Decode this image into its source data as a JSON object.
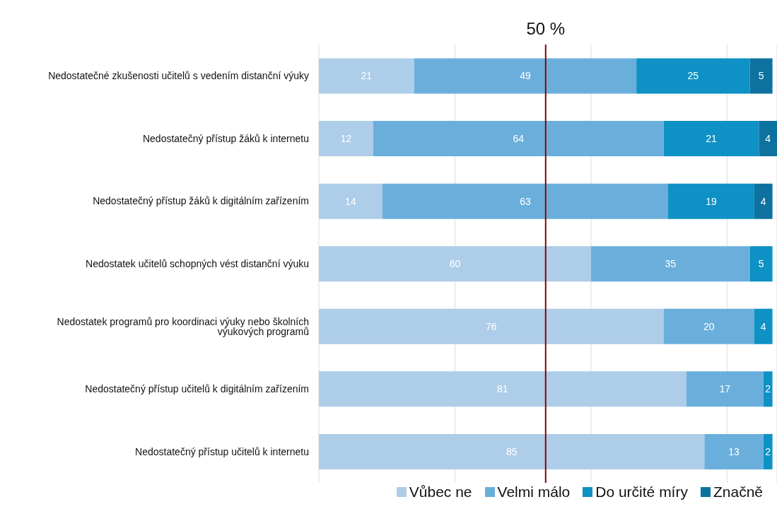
{
  "chart_data": {
    "type": "bar",
    "orientation": "horizontal",
    "stacked": true,
    "data_labels": true,
    "grid": "x",
    "legend": "bottom right",
    "tick_labels": "y",
    "categories": [
      "Nedostatečné zkušenosti učitelů s vedením distanční výuky",
      "Nedostatečný přístup žáků k internetu",
      "Nedostatečný přístup žáků k digitálním zařízením",
      "Nedostatek učitelů schopných vést distanční výuku",
      "Nedostatek programů pro koordinaci výuky nebo školních výukových programů",
      "Nedostatečný přístup učitelů k digitálním zařízením",
      "Nedostatečný přístup učitelů k internetu"
    ],
    "xlim": [
      0,
      101
    ],
    "series": [
      {
        "name": "Vůbec ne",
        "color": "#aecde8",
        "values": [
          21,
          12,
          14,
          60,
          76,
          81,
          85
        ]
      },
      {
        "name": "Velmi málo",
        "color": "#6aafdc",
        "values": [
          49,
          64,
          63,
          35,
          20,
          17,
          13
        ]
      },
      {
        "name": "Do určité míry",
        "color": "#0e91c4",
        "values": [
          25,
          21,
          19,
          5,
          4,
          2,
          2
        ]
      },
      {
        "name": "Značně",
        "color": "#0d72a0",
        "values": [
          5,
          4,
          4,
          null,
          null,
          null,
          null
        ]
      }
    ],
    "ref_lines": [
      {
        "axis": "x",
        "value": 50,
        "label": "50 %",
        "color": "#8b0000"
      }
    ]
  }
}
